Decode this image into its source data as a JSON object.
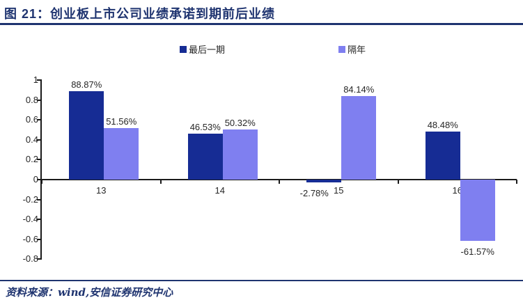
{
  "title": {
    "text": "图 21：创业板上市公司业绩承诺到期前后业绩"
  },
  "footer": {
    "text": "资料来源：wind,安信证券研究中心"
  },
  "colors": {
    "accent_navy": "#1F3470",
    "series_dark": "#162C94",
    "series_light": "#7F7FF0",
    "axis": "#1a1a1a",
    "label_text": "#262626"
  },
  "chart_data": {
    "type": "bar",
    "title": "",
    "xlabel": "",
    "ylabel": "",
    "categories": [
      "13",
      "14",
      "15",
      "16"
    ],
    "series": [
      {
        "name": "最后一期",
        "color": "#162C94",
        "values": [
          0.8887,
          0.4653,
          -0.0278,
          0.4848
        ],
        "labels": [
          "88.87%",
          "46.53%",
          "-2.78%",
          "48.48%"
        ],
        "label_dx": [
          0,
          0,
          -14,
          0
        ]
      },
      {
        "name": "隔年",
        "color": "#7F7FF0",
        "values": [
          0.5156,
          0.5032,
          0.8414,
          -0.6157
        ],
        "labels": [
          "51.56%",
          "50.32%",
          "84.14%",
          "-61.57%"
        ],
        "label_dx": [
          0,
          0,
          0,
          0
        ]
      }
    ],
    "ylim": [
      -0.8,
      1.0
    ],
    "ytick_step": 0.2,
    "yticks": [
      "1",
      "0.8",
      "0.6",
      "0.4",
      "0.2",
      "0",
      "-0.2",
      "-0.4",
      "-0.6",
      "-0.8"
    ],
    "grid": false,
    "legend_position": "top"
  }
}
